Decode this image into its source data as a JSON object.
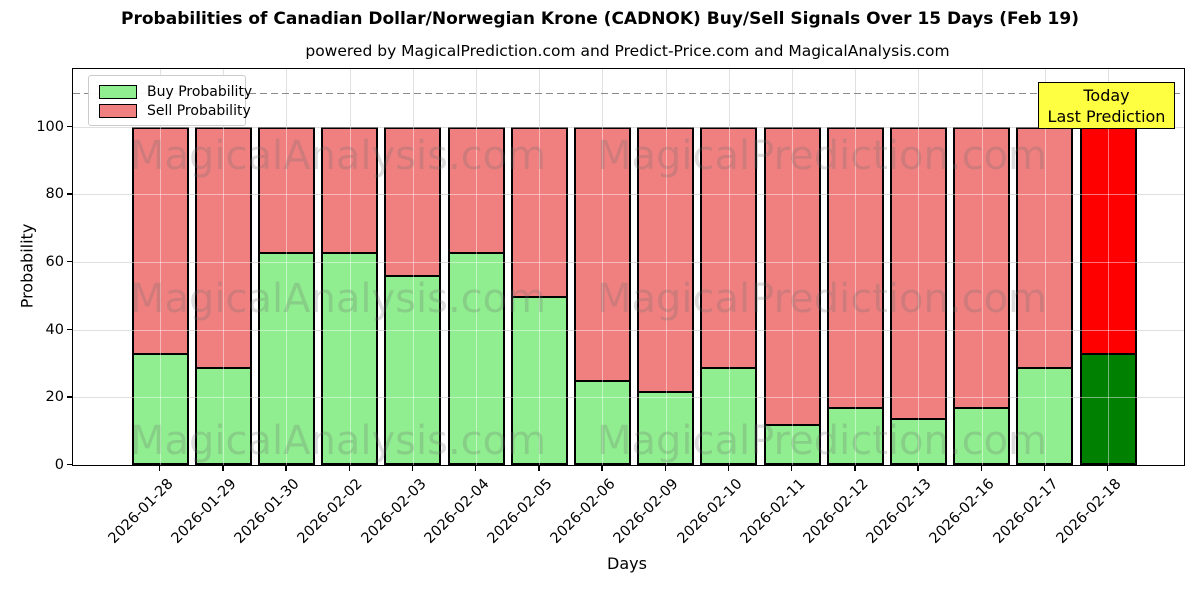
{
  "title": "Probabilities of Canadian Dollar/Norwegian Krone (CADNOK) Buy/Sell Signals Over 15 Days (Feb 19)",
  "subtitle": "powered by MagicalPrediction.com and Predict-Price.com and MagicalAnalysis.com",
  "legend": {
    "items": [
      {
        "label": "Buy Probability",
        "color": "#90EE90"
      },
      {
        "label": "Sell Probability",
        "color": "#F08080"
      }
    ]
  },
  "today_box": {
    "lines": [
      "Today",
      "Last Prediction"
    ],
    "bg_color": "#ffff42"
  },
  "watermarks": {
    "texts": [
      "MagicalAnalysis.com",
      "MagicalPrediction.com"
    ]
  },
  "chart_data": {
    "type": "bar",
    "stacked": true,
    "title": "Probabilities of Canadian Dollar/Norwegian Krone (CADNOK) Buy/Sell Signals Over 15 Days (Feb 19)",
    "xlabel": "Days",
    "ylabel": "Probability",
    "categories": [
      "2026-01-28",
      "2026-01-29",
      "2026-01-30",
      "2026-02-02",
      "2026-02-03",
      "2026-02-04",
      "2026-02-05",
      "2026-02-06",
      "2026-02-09",
      "2026-02-10",
      "2026-02-11",
      "2026-02-12",
      "2026-02-13",
      "2026-02-16",
      "2026-02-17",
      "2026-02-18"
    ],
    "series": [
      {
        "name": "Buy Probability",
        "color": "#90EE90",
        "today_color": "#008000",
        "values": [
          33,
          29,
          63,
          63,
          56,
          63,
          50,
          25,
          22,
          29,
          12,
          17,
          14,
          17,
          29,
          33
        ]
      },
      {
        "name": "Sell Probability",
        "color": "#F08080",
        "today_color": "#FF0000",
        "values": [
          67,
          71,
          37,
          37,
          44,
          37,
          50,
          75,
          78,
          71,
          88,
          83,
          86,
          83,
          71,
          67
        ]
      }
    ],
    "today_index": 15,
    "yticks": [
      0,
      20,
      40,
      60,
      80,
      100
    ],
    "ylim": [
      0,
      117
    ],
    "dashed_line_y": 110,
    "grid": true,
    "legend_position": "upper left",
    "bar_edge_color": "#000000"
  }
}
